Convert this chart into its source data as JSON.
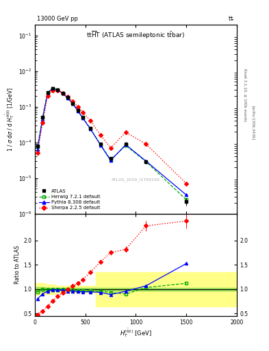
{
  "top_left_label": "13000 GeV pp",
  "top_right_label": "t$\\bar{t}$",
  "watermark": "ATLAS_2019_I1750330",
  "xlim": [
    0,
    2000
  ],
  "ylim_main": [
    1e-06,
    0.2
  ],
  "ylim_ratio": [
    0.45,
    2.55
  ],
  "atlas_x": [
    25,
    75,
    125,
    175,
    225,
    275,
    325,
    375,
    425,
    475,
    550,
    650,
    750,
    900,
    1100,
    1500
  ],
  "atlas_y": [
    8e-05,
    0.0005,
    0.0025,
    0.0033,
    0.003,
    0.0024,
    0.0018,
    0.00125,
    0.0008,
    0.0005,
    0.00025,
    9e-05,
    3.5e-05,
    9e-05,
    2.8e-05,
    2.2e-06
  ],
  "atlas_yerr": [
    8e-06,
    4e-05,
    0.00012,
    0.00015,
    0.00013,
    0.00011,
    9e-05,
    6e-05,
    4e-05,
    2.5e-05,
    1.2e-05,
    5e-06,
    2e-06,
    8e-06,
    3e-06,
    5e-07
  ],
  "herwig_x": [
    25,
    75,
    125,
    175,
    225,
    275,
    325,
    375,
    425,
    475,
    550,
    650,
    750,
    900,
    1100,
    1500
  ],
  "herwig_y": [
    7.5e-05,
    0.0005,
    0.0025,
    0.0033,
    0.003,
    0.0024,
    0.00178,
    0.00123,
    0.00078,
    0.000482,
    0.000241,
    8.6e-05,
    3.26e-05,
    8.1e-05,
    2.89e-05,
    2.46e-06
  ],
  "pythia_x": [
    25,
    75,
    125,
    175,
    225,
    275,
    325,
    375,
    425,
    475,
    550,
    650,
    750,
    900,
    1100,
    1500
  ],
  "pythia_y": [
    6.4e-05,
    0.00045,
    0.0024,
    0.00325,
    0.00295,
    0.00235,
    0.00173,
    0.0012,
    0.00076,
    0.000473,
    0.000236,
    8.4e-05,
    3.11e-05,
    8.6e-05,
    2.99e-05,
    3.35e-06
  ],
  "sherpa_x": [
    25,
    75,
    125,
    175,
    225,
    275,
    325,
    375,
    425,
    475,
    550,
    650,
    750,
    900,
    1100,
    1500
  ],
  "sherpa_y": [
    5e-05,
    0.00035,
    0.002,
    0.0028,
    0.0028,
    0.0024,
    0.0019,
    0.0014,
    0.001,
    0.0007,
    0.0004,
    0.00016,
    7e-05,
    0.00019,
    9e-05,
    7e-06
  ],
  "atlas_color": "#000000",
  "herwig_color": "#00aa00",
  "pythia_color": "#0000ff",
  "sherpa_color": "#ff0000",
  "ratio_herwig_x": [
    25,
    75,
    125,
    175,
    225,
    275,
    325,
    375,
    425,
    475,
    550,
    650,
    750,
    900,
    1100,
    1500
  ],
  "ratio_herwig_y": [
    0.94,
    1.0,
    1.0,
    1.0,
    1.0,
    1.0,
    0.99,
    0.984,
    0.975,
    0.964,
    0.964,
    0.956,
    0.931,
    0.9,
    1.032,
    1.12
  ],
  "ratio_pythia_x": [
    25,
    75,
    125,
    175,
    225,
    275,
    325,
    375,
    425,
    475,
    550,
    650,
    750,
    900,
    1100,
    1500
  ],
  "ratio_pythia_y": [
    0.8,
    0.9,
    0.96,
    0.985,
    0.983,
    0.979,
    0.961,
    0.96,
    0.95,
    0.946,
    0.944,
    0.933,
    0.889,
    0.956,
    1.068,
    1.525
  ],
  "ratio_sherpa_x": [
    25,
    75,
    125,
    175,
    225,
    275,
    325,
    375,
    425,
    475,
    550,
    650,
    750,
    900,
    1100,
    1500
  ],
  "ratio_sherpa_y": [
    0.48,
    0.55,
    0.65,
    0.76,
    0.85,
    0.93,
    1.0,
    1.06,
    1.12,
    1.2,
    1.35,
    1.56,
    1.75,
    1.82,
    2.3,
    2.4
  ],
  "ratio_sherpa_yerr": [
    0.03,
    0.02,
    0.02,
    0.02,
    0.02,
    0.02,
    0.02,
    0.02,
    0.02,
    0.02,
    0.03,
    0.04,
    0.05,
    0.07,
    0.1,
    0.15
  ],
  "band_x_edges": [
    0,
    50,
    100,
    150,
    200,
    250,
    300,
    350,
    400,
    450,
    500,
    600,
    700,
    800,
    1000,
    2000
  ],
  "green_lo": [
    0.96,
    0.96,
    0.97,
    0.97,
    0.975,
    0.975,
    0.975,
    0.975,
    0.975,
    0.975,
    0.975,
    0.975,
    0.975,
    0.975,
    0.975,
    0.975
  ],
  "green_hi": [
    1.04,
    1.04,
    1.03,
    1.03,
    1.025,
    1.025,
    1.025,
    1.025,
    1.025,
    1.025,
    1.025,
    1.025,
    1.025,
    1.025,
    1.025,
    1.025
  ],
  "yellow_lo": [
    0.88,
    0.88,
    0.9,
    0.9,
    0.93,
    0.93,
    0.93,
    0.93,
    0.93,
    0.93,
    0.93,
    0.65,
    0.65,
    0.65,
    0.65,
    0.65
  ],
  "yellow_hi": [
    1.12,
    1.12,
    1.1,
    1.1,
    1.07,
    1.07,
    1.07,
    1.07,
    1.07,
    1.07,
    1.07,
    1.35,
    1.35,
    1.35,
    1.35,
    1.35
  ]
}
